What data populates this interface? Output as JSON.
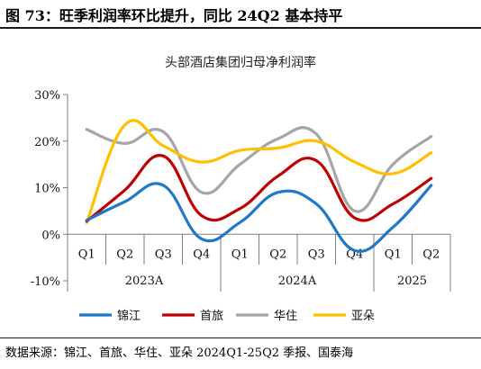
{
  "figure": {
    "title": "图 73：旺季利润率环比提升，同比 24Q2 基本持平",
    "source": "数据来源：锦江、首旅、华住、亚朵 2024Q1-25Q2 季报、国泰海"
  },
  "chart_data": {
    "type": "line",
    "title": "头部酒店集团归母净利润率",
    "quarter_labels": [
      "Q1",
      "Q2",
      "Q3",
      "Q4",
      "Q1",
      "Q2",
      "Q3",
      "Q4",
      "Q1",
      "Q2"
    ],
    "year_groups": [
      {
        "label": "2023A",
        "span": 4
      },
      {
        "label": "2024A",
        "span": 4
      },
      {
        "label": "2025",
        "span": 2
      }
    ],
    "y_ticks": [
      "30%",
      "20%",
      "10%",
      "0%",
      "-10%"
    ],
    "ylim": [
      -10,
      30
    ],
    "y_tick_values": [
      30,
      20,
      10,
      0,
      -10
    ],
    "grid": false,
    "legend_position": "bottom",
    "series": [
      {
        "name": "锦江",
        "color": "#1f78c8",
        "values": [
          3.0,
          7.0,
          10.5,
          -1.0,
          2.5,
          9.0,
          6.5,
          -3.5,
          1.5,
          10.5
        ]
      },
      {
        "name": "首旅",
        "color": "#c00000",
        "values": [
          2.8,
          9.5,
          16.8,
          4.0,
          5.5,
          12.5,
          15.8,
          3.5,
          6.5,
          12.0
        ]
      },
      {
        "name": "华住",
        "color": "#a6a6a6",
        "values": [
          22.5,
          19.5,
          22.0,
          9.0,
          15.0,
          20.5,
          21.5,
          5.0,
          15.0,
          21.0
        ]
      },
      {
        "name": "亚朵",
        "color": "#ffc000",
        "values": [
          2.5,
          23.5,
          19.0,
          15.5,
          18.0,
          18.5,
          20.0,
          15.5,
          13.0,
          17.5
        ]
      }
    ]
  }
}
